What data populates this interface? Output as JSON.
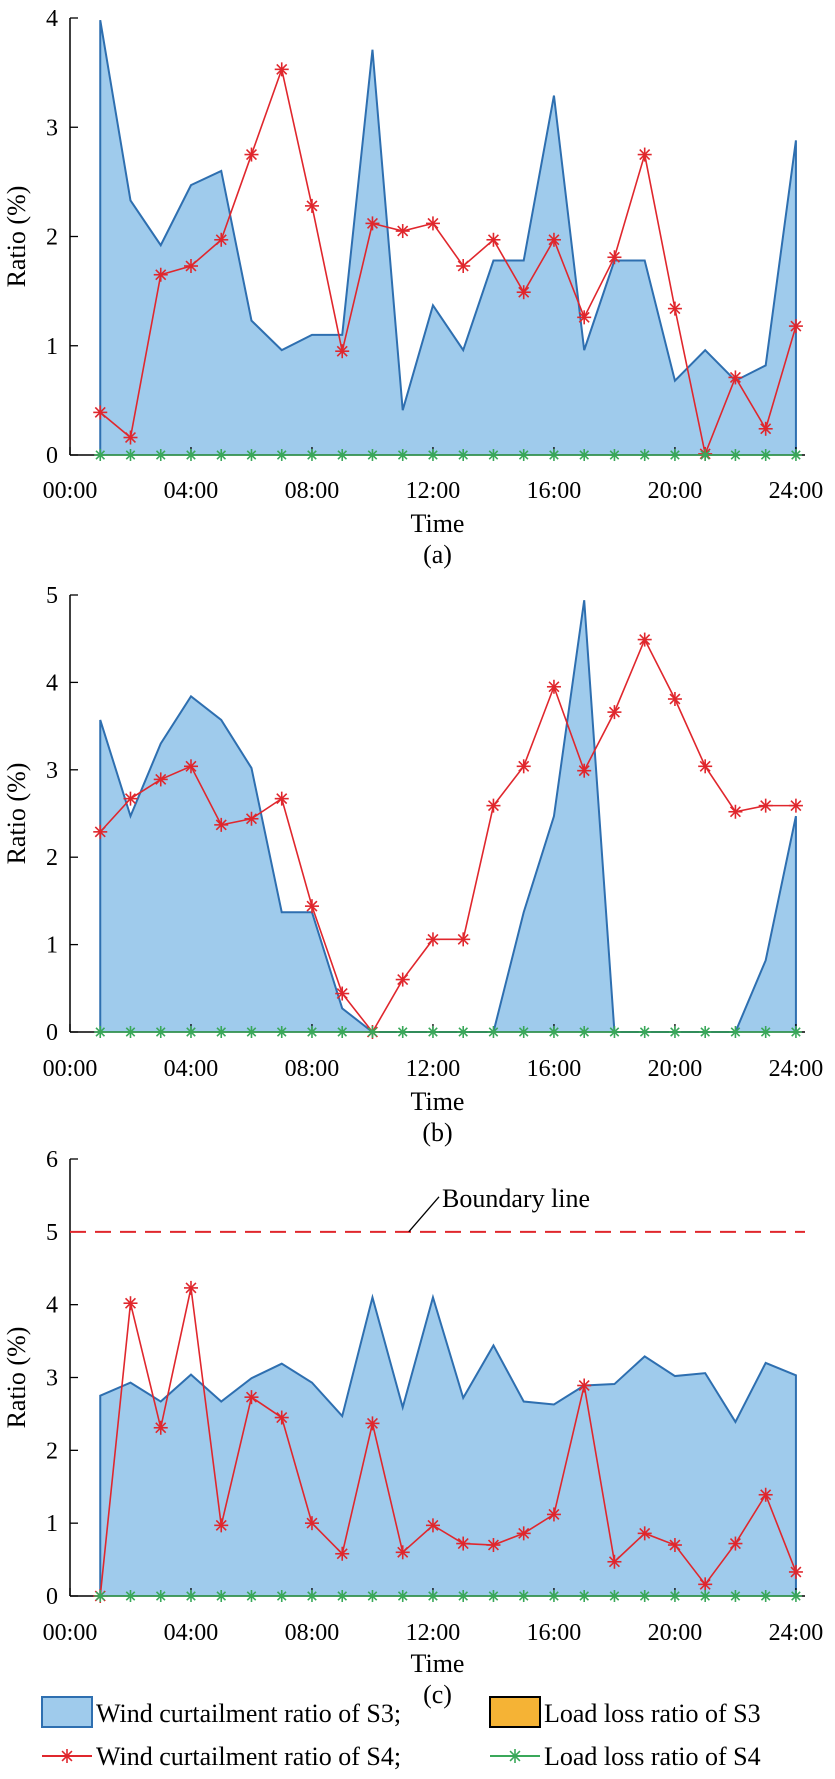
{
  "colors": {
    "s3_wind_fill": "#9fcbec",
    "s3_wind_line": "#2e6fb0",
    "s3_load_fill": "#f5b335",
    "s4_wind": "#e0272d",
    "s4_load": "#3aa85a",
    "boundary": "#e0272d"
  },
  "legend": {
    "s3_wind": "Wind curtailment ratio of S3;",
    "s3_load": "Load loss ratio of S3",
    "s4_wind": "Wind curtailment ratio of S4;",
    "s4_load": "Load loss ratio of S4"
  },
  "chart_data": [
    {
      "type": "area",
      "panel_label": "(a)",
      "xlabel": "Time",
      "ylabel": "Ratio (%)",
      "xlim": [
        1,
        24
      ],
      "ylim": [
        0,
        4
      ],
      "yticks": [
        0,
        1,
        2,
        3,
        4
      ],
      "xticks": [
        0,
        4,
        8,
        12,
        16,
        20,
        24
      ],
      "xtick_labels": [
        "00:00",
        "04:00",
        "08:00",
        "12:00",
        "16:00",
        "20:00",
        "24:00"
      ],
      "x": [
        1,
        2,
        3,
        4,
        5,
        6,
        7,
        8,
        9,
        10,
        11,
        12,
        13,
        14,
        15,
        16,
        17,
        18,
        19,
        20,
        21,
        22,
        23,
        24
      ],
      "series": [
        {
          "name": "Wind curtailment ratio of S3",
          "style": "area",
          "values": [
            3.98,
            2.33,
            1.92,
            2.47,
            2.6,
            1.23,
            0.96,
            1.1,
            1.1,
            3.71,
            0.41,
            1.37,
            0.96,
            1.78,
            1.78,
            3.29,
            0.96,
            1.78,
            1.78,
            0.68,
            0.96,
            0.68,
            0.82,
            2.88
          ]
        },
        {
          "name": "Load loss ratio of S3",
          "style": "area",
          "values": [
            0,
            0,
            0,
            0,
            0,
            0,
            0,
            0,
            0,
            0,
            0,
            0,
            0,
            0,
            0,
            0,
            0,
            0,
            0,
            0,
            0,
            0,
            0,
            0
          ]
        },
        {
          "name": "Wind curtailment ratio of S4",
          "style": "line-star",
          "values": [
            0.39,
            0.16,
            1.65,
            1.73,
            1.97,
            2.75,
            3.53,
            2.28,
            0.95,
            2.12,
            2.05,
            2.12,
            1.73,
            1.97,
            1.49,
            1.97,
            1.26,
            1.81,
            2.75,
            1.34,
            0.01,
            0.71,
            0.24,
            1.18
          ]
        },
        {
          "name": "Load loss ratio of S4",
          "style": "line-star",
          "values": [
            0,
            0,
            0,
            0,
            0,
            0,
            0,
            0,
            0,
            0,
            0,
            0,
            0,
            0,
            0,
            0,
            0,
            0,
            0,
            0,
            0,
            0,
            0,
            0
          ]
        }
      ]
    },
    {
      "type": "area",
      "panel_label": "(b)",
      "xlabel": "Time",
      "ylabel": "Ratio (%)",
      "xlim": [
        1,
        24
      ],
      "ylim": [
        0,
        5
      ],
      "yticks": [
        0,
        1,
        2,
        3,
        4,
        5
      ],
      "xticks": [
        0,
        4,
        8,
        12,
        16,
        20,
        24
      ],
      "xtick_labels": [
        "00:00",
        "04:00",
        "08:00",
        "12:00",
        "16:00",
        "20:00",
        "24:00"
      ],
      "x": [
        1,
        2,
        3,
        4,
        5,
        6,
        7,
        8,
        9,
        10,
        11,
        12,
        13,
        14,
        15,
        16,
        17,
        18,
        19,
        20,
        21,
        22,
        23,
        24
      ],
      "series": [
        {
          "name": "Wind curtailment ratio of S3",
          "style": "area",
          "values": [
            3.57,
            2.47,
            3.3,
            3.84,
            3.57,
            3.02,
            1.37,
            1.37,
            0.27,
            0,
            0,
            0,
            0,
            0,
            1.37,
            2.47,
            4.94,
            0,
            0,
            0,
            0,
            0,
            0.82,
            2.47
          ]
        },
        {
          "name": "Load loss ratio of S3",
          "style": "area",
          "values": [
            0,
            0,
            0,
            0,
            0,
            0,
            0,
            0,
            0,
            0,
            0,
            0,
            0,
            0,
            0,
            0,
            0,
            0,
            0,
            0,
            0,
            0,
            0,
            0
          ]
        },
        {
          "name": "Wind curtailment ratio of S4",
          "style": "line-star",
          "values": [
            2.29,
            2.67,
            2.89,
            3.04,
            2.37,
            2.44,
            2.67,
            1.44,
            0.44,
            0,
            0.6,
            1.06,
            1.06,
            2.59,
            3.04,
            3.95,
            2.99,
            3.66,
            4.49,
            3.81,
            3.04,
            2.52,
            2.59,
            2.59
          ]
        },
        {
          "name": "Load loss ratio of S4",
          "style": "line-star",
          "values": [
            0,
            0,
            0,
            0,
            0,
            0,
            0,
            0,
            0,
            0,
            0,
            0,
            0,
            0,
            0,
            0,
            0,
            0,
            0,
            0,
            0,
            0,
            0,
            0
          ]
        }
      ]
    },
    {
      "type": "area",
      "panel_label": "(c)",
      "xlabel": "Time",
      "ylabel": "Ratio (%)",
      "xlim": [
        1,
        24
      ],
      "ylim": [
        0,
        6
      ],
      "yticks": [
        0,
        1,
        2,
        3,
        4,
        5,
        6
      ],
      "xticks": [
        0,
        4,
        8,
        12,
        16,
        20,
        24
      ],
      "xtick_labels": [
        "00:00",
        "04:00",
        "08:00",
        "12:00",
        "16:00",
        "20:00",
        "24:00"
      ],
      "x": [
        1,
        2,
        3,
        4,
        5,
        6,
        7,
        8,
        9,
        10,
        11,
        12,
        13,
        14,
        15,
        16,
        17,
        18,
        19,
        20,
        21,
        22,
        23,
        24
      ],
      "annotation": "Boundary line",
      "boundary_value": 5,
      "series": [
        {
          "name": "Wind curtailment ratio of S3",
          "style": "area",
          "values": [
            2.75,
            2.93,
            2.67,
            3.04,
            2.67,
            2.99,
            3.19,
            2.93,
            2.47,
            4.1,
            2.59,
            4.1,
            2.72,
            3.44,
            2.67,
            2.63,
            2.89,
            2.91,
            3.29,
            3.02,
            3.06,
            2.39,
            3.2,
            3.03
          ]
        },
        {
          "name": "Load loss ratio of S3",
          "style": "area",
          "values": [
            0,
            0,
            0,
            0,
            0,
            0,
            0,
            0,
            0,
            0,
            0,
            0,
            0,
            0,
            0,
            0,
            0,
            0,
            0,
            0,
            0,
            0,
            0,
            0
          ]
        },
        {
          "name": "Wind curtailment ratio of S4",
          "style": "line-star",
          "values": [
            0,
            4.02,
            2.31,
            4.23,
            0.97,
            2.73,
            2.45,
            1.0,
            0.58,
            2.37,
            0.6,
            0.97,
            0.72,
            0.7,
            0.86,
            1.12,
            2.89,
            0.47,
            0.86,
            0.7,
            0.16,
            0.72,
            1.39,
            0.33
          ]
        },
        {
          "name": "Load loss ratio of S4",
          "style": "line-star",
          "values": [
            0,
            0,
            0,
            0,
            0,
            0,
            0,
            0,
            0,
            0,
            0,
            0,
            0,
            0,
            0,
            0,
            0,
            0,
            0,
            0,
            0,
            0,
            0,
            0
          ]
        }
      ]
    }
  ]
}
